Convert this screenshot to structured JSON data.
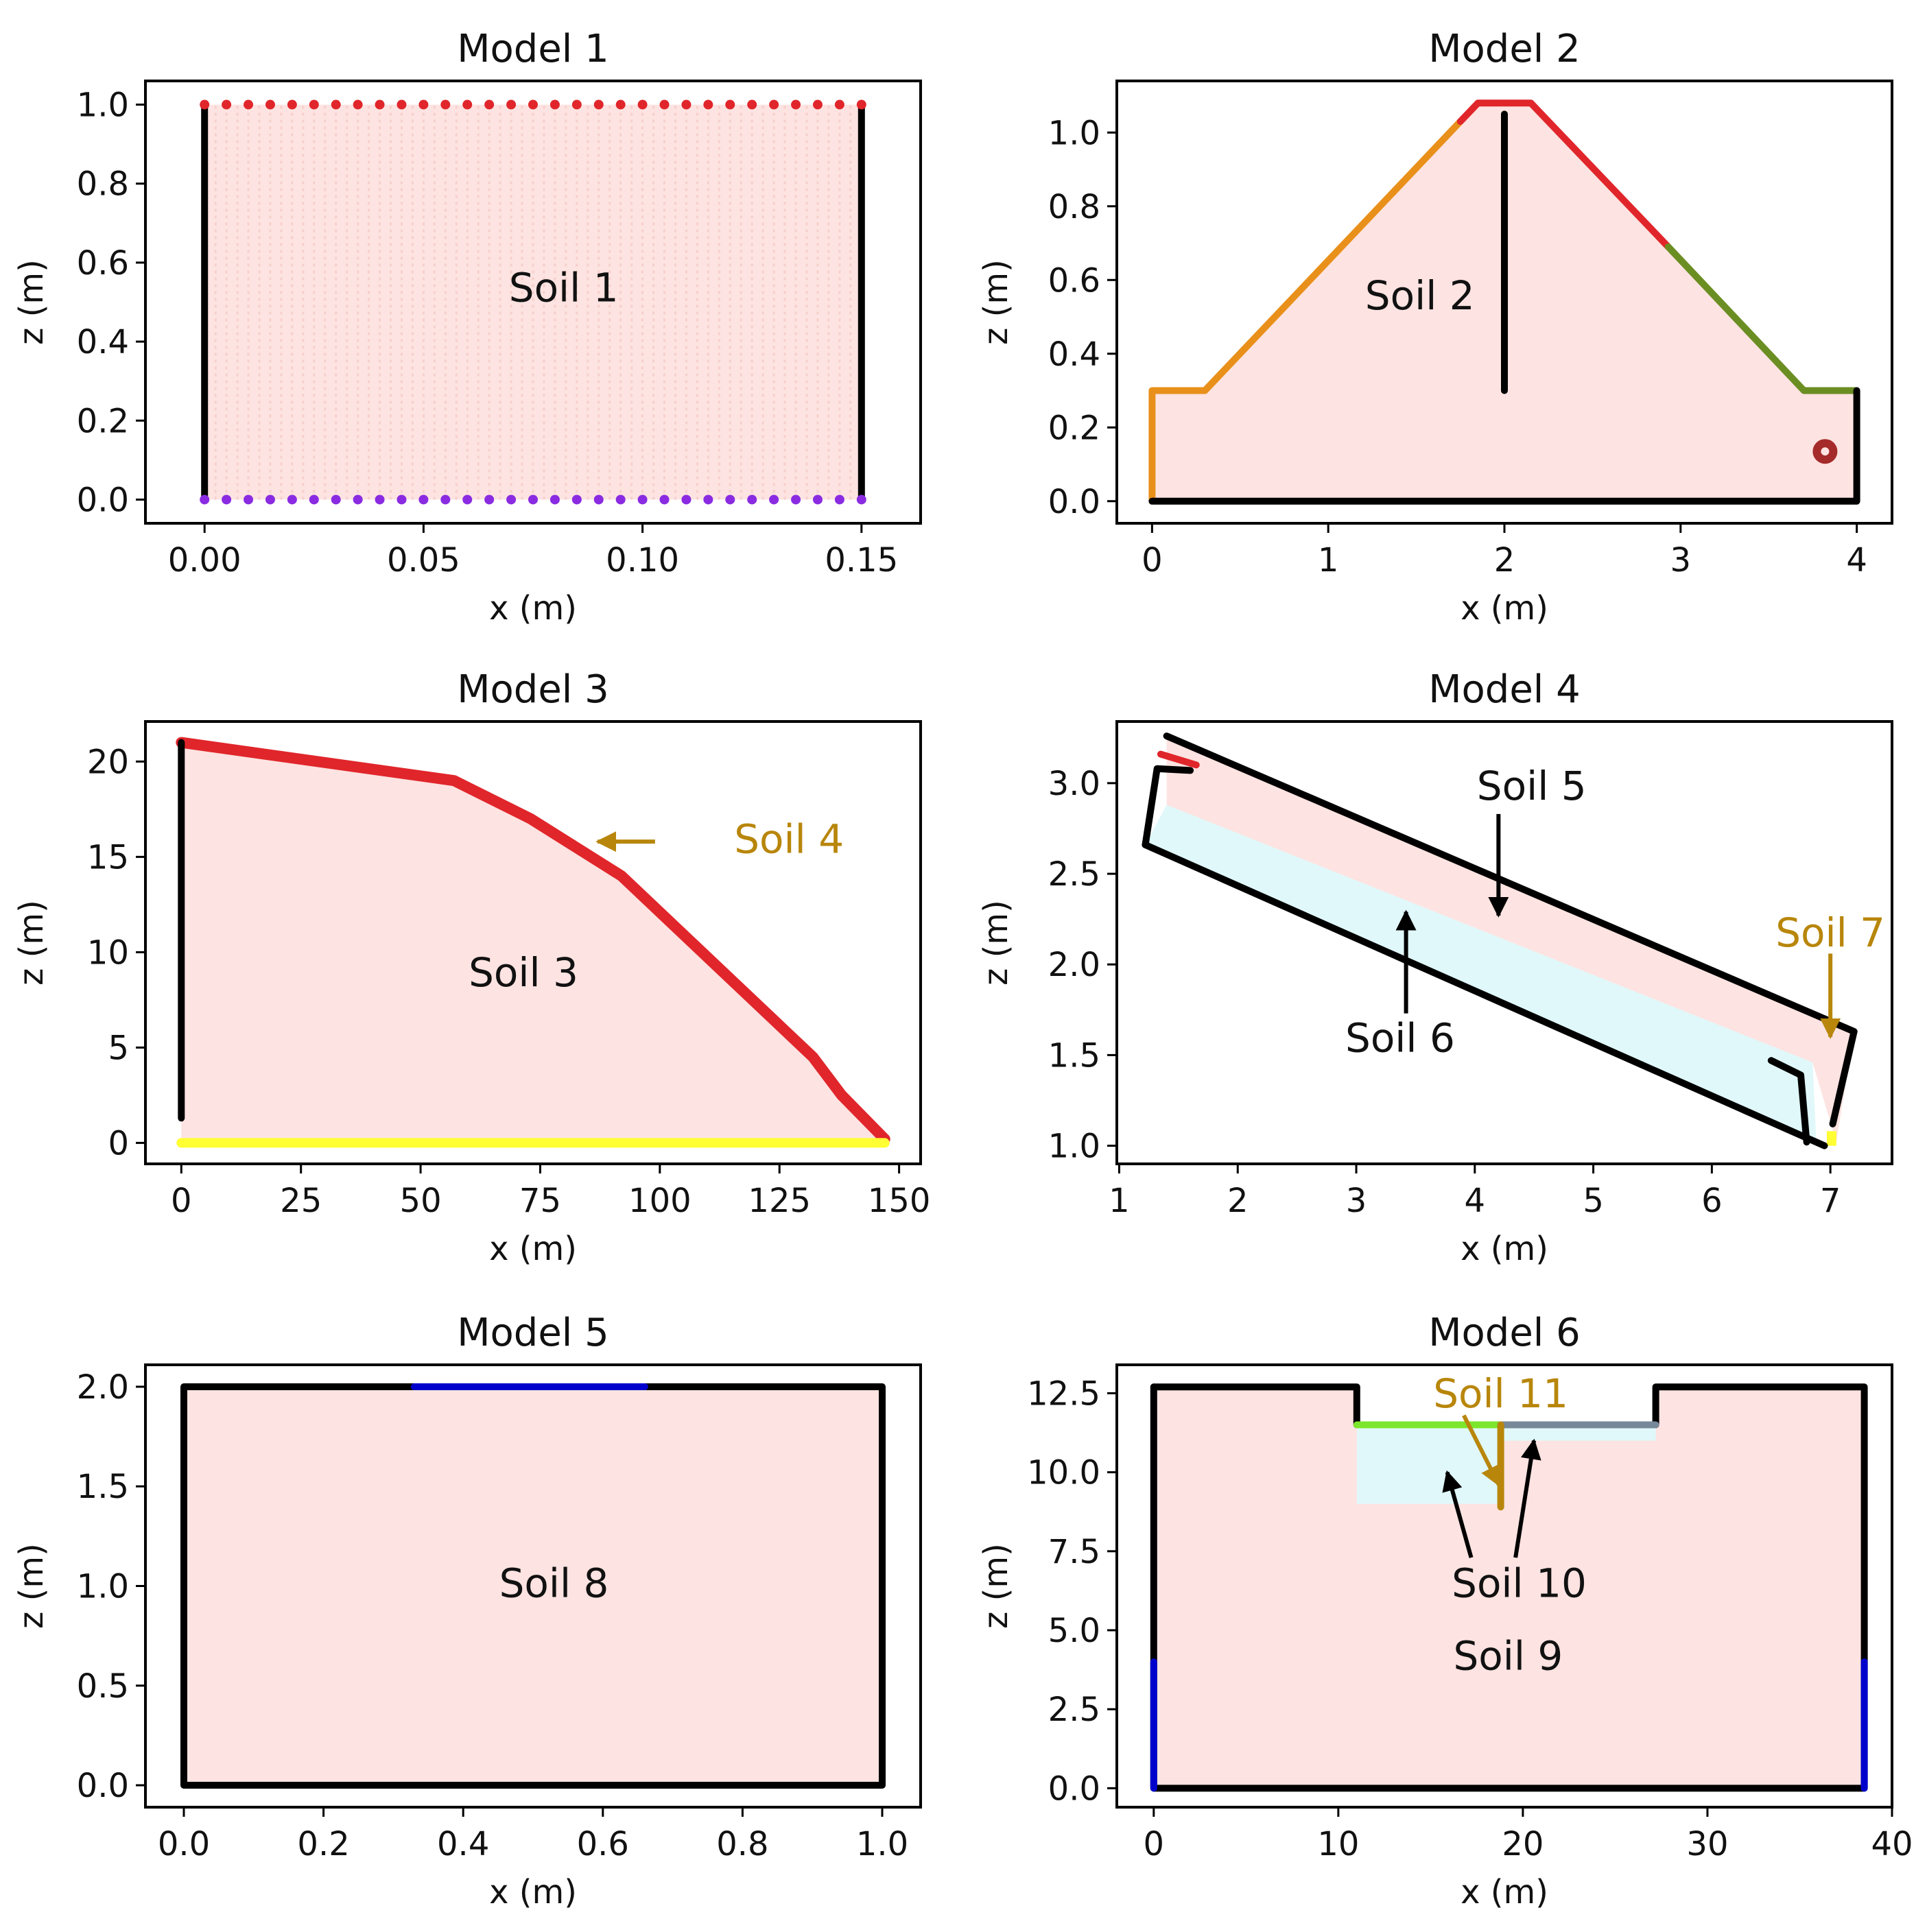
{
  "chart_data": [
    {
      "type": "scatter",
      "title": "Model 1",
      "xlabel": "x (m)",
      "ylabel": "z (m)",
      "xlim": [
        -0.0135,
        0.1635
      ],
      "ylim": [
        -0.06,
        1.06
      ],
      "xticks": [
        0.0,
        0.05,
        0.1,
        0.15
      ],
      "xtick_labels": [
        "0.00",
        "0.05",
        "0.10",
        "0.15"
      ],
      "yticks": [
        0.0,
        0.2,
        0.4,
        0.6,
        0.8,
        1.0
      ],
      "ytick_labels": [
        "0.0",
        "0.2",
        "0.4",
        "0.6",
        "0.8",
        "1.0"
      ],
      "region_fill": "#f8d9d7",
      "regions": [
        {
          "name": "soil-1",
          "color": "#fde3e1",
          "points": [
            [
              0,
              0
            ],
            [
              0.15,
              0
            ],
            [
              0.15,
              1
            ],
            [
              0,
              1
            ]
          ]
        }
      ],
      "boundaries": [
        {
          "name": "left-wall",
          "color": "#000000",
          "points": [
            [
              0,
              0
            ],
            [
              0,
              1
            ]
          ]
        },
        {
          "name": "right-wall",
          "color": "#000000",
          "points": [
            [
              0.15,
              0
            ],
            [
              0.15,
              1
            ]
          ]
        }
      ],
      "dot_rows": [
        {
          "name": "top-particles",
          "color": "#e0262b",
          "z": 1.0,
          "x_start": 0,
          "x_end": 0.15,
          "count": 31
        },
        {
          "name": "bottom-particles",
          "color": "#8a2be2",
          "z": 0.0,
          "x_start": 0,
          "x_end": 0.15,
          "count": 31
        }
      ],
      "labels": [
        {
          "text": "Soil 1",
          "x": 0.082,
          "z": 0.53,
          "color": "#111111"
        }
      ]
    },
    {
      "type": "scatter",
      "title": "Model 2",
      "xlabel": "x (m)",
      "ylabel": "z (m)",
      "xlim": [
        -0.2,
        4.2
      ],
      "ylim": [
        -0.06,
        1.14
      ],
      "xticks": [
        0,
        1,
        2,
        3,
        4
      ],
      "xtick_labels": [
        "0",
        "1",
        "2",
        "3",
        "4"
      ],
      "yticks": [
        0.0,
        0.2,
        0.4,
        0.6,
        0.8,
        1.0
      ],
      "ytick_labels": [
        "0.0",
        "0.2",
        "0.4",
        "0.6",
        "0.8",
        "1.0"
      ],
      "regions": [
        {
          "name": "soil-2",
          "color": "#fde3e1",
          "points": [
            [
              0,
              0
            ],
            [
              4,
              0
            ],
            [
              4,
              0.3
            ],
            [
              3.7,
              0.3
            ],
            [
              2.15,
              1.08
            ],
            [
              1.85,
              1.08
            ],
            [
              0.3,
              0.3
            ],
            [
              0,
              0.3
            ]
          ]
        }
      ],
      "boundaries": [
        {
          "name": "left-slope-boundary",
          "color": "#e8901a",
          "points": [
            [
              0,
              0
            ],
            [
              0,
              0.3
            ],
            [
              0.3,
              0.3
            ],
            [
              1.75,
              1.03
            ]
          ]
        },
        {
          "name": "crest-boundary",
          "color": "#e0262b",
          "points": [
            [
              1.75,
              1.03
            ],
            [
              1.85,
              1.08
            ],
            [
              2.15,
              1.08
            ],
            [
              2.93,
              0.69
            ]
          ]
        },
        {
          "name": "right-slope-boundary",
          "color": "#6b8e23",
          "points": [
            [
              2.93,
              0.69
            ],
            [
              3.7,
              0.3
            ],
            [
              4,
              0.3
            ]
          ]
        },
        {
          "name": "base-boundary",
          "color": "#000000",
          "points": [
            [
              0,
              0
            ],
            [
              4,
              0
            ],
            [
              4,
              0.3
            ]
          ]
        },
        {
          "name": "core-wall",
          "color": "#000000",
          "points": [
            [
              2,
              0.3
            ],
            [
              2,
              1.05
            ]
          ]
        }
      ],
      "markers": [
        {
          "name": "red-marker",
          "x": 3.82,
          "z": 0.135,
          "color": "#a52a2a"
        }
      ],
      "labels": [
        {
          "text": "Soil 2",
          "x": 1.52,
          "z": 0.55,
          "color": "#111111"
        }
      ]
    },
    {
      "type": "scatter",
      "title": "Model 3",
      "xlabel": "x (m)",
      "ylabel": "z (m)",
      "xlim": [
        -7.5,
        154.5
      ],
      "ylim": [
        -1.1,
        22.1
      ],
      "xticks": [
        0,
        25,
        50,
        75,
        100,
        125,
        150
      ],
      "xtick_labels": [
        "0",
        "25",
        "50",
        "75",
        "100",
        "125",
        "150"
      ],
      "yticks": [
        0,
        5,
        10,
        15,
        20
      ],
      "ytick_labels": [
        "0",
        "5",
        "10",
        "15",
        "20"
      ],
      "regions": [
        {
          "name": "soil-3",
          "color": "#fde3e1",
          "points": [
            [
              0,
              0
            ],
            [
              147,
              0
            ],
            [
              138,
              2.5
            ],
            [
              132,
              4.5
            ],
            [
              92,
              14
            ],
            [
              73,
              17
            ],
            [
              57,
              19
            ],
            [
              0,
              21
            ]
          ]
        }
      ],
      "boundaries": [
        {
          "name": "surface-boundary",
          "color": "#e0262b",
          "points": [
            [
              0,
              21
            ],
            [
              57,
              19
            ],
            [
              73,
              17
            ],
            [
              92,
              14
            ],
            [
              132,
              4.5
            ],
            [
              138,
              2.5
            ],
            [
              147,
              0.2
            ]
          ]
        },
        {
          "name": "base-boundary",
          "color": "#ffff33",
          "points": [
            [
              0,
              0
            ],
            [
              147,
              0
            ]
          ]
        },
        {
          "name": "left-boundary",
          "color": "#000000",
          "points": [
            [
              0,
              1.3
            ],
            [
              0,
              21
            ]
          ]
        }
      ],
      "labels": [
        {
          "text": "Soil 3",
          "x": 71.5,
          "z": 8.8,
          "color": "#111111"
        },
        {
          "text": "Soil 4",
          "x": 127,
          "z": 15.8,
          "color": "#b8860b"
        }
      ],
      "arrows": [
        {
          "name": "soil-4-arrow",
          "from": [
            99,
            15.8
          ],
          "to": [
            87,
            15.8
          ],
          "color": "#b8860b"
        }
      ]
    },
    {
      "type": "scatter",
      "title": "Model 4",
      "xlabel": "x (m)",
      "ylabel": "z (m)",
      "xlim": [
        0.98,
        7.52
      ],
      "ylim": [
        0.9,
        3.34
      ],
      "xticks": [
        1,
        2,
        3,
        4,
        5,
        6,
        7
      ],
      "xtick_labels": [
        "1",
        "2",
        "3",
        "4",
        "5",
        "6",
        "7"
      ],
      "yticks": [
        1.0,
        1.5,
        2.0,
        2.5,
        3.0
      ],
      "ytick_labels": [
        "1.0",
        "1.5",
        "2.0",
        "2.5",
        "3.0"
      ],
      "regions": [
        {
          "name": "soil-5",
          "color": "#fde3e1",
          "points": [
            [
              1.4,
              3.26
            ],
            [
              7.2,
              1.63
            ],
            [
              7.05,
              1.02
            ],
            [
              6.85,
              1.46
            ],
            [
              1.4,
              2.88
            ]
          ]
        },
        {
          "name": "soil-6",
          "color": "#e0f8fa",
          "points": [
            [
              1.22,
              2.66
            ],
            [
              1.4,
              2.88
            ],
            [
              6.85,
              1.46
            ],
            [
              6.88,
              1.03
            ],
            [
              6.95,
              1.0
            ]
          ]
        },
        {
          "name": "soil-7",
          "color": "#ffff33",
          "points": [
            [
              6.97,
              1.0
            ],
            [
              7.05,
              1.0
            ],
            [
              7.05,
              1.08
            ],
            [
              6.97,
              1.08
            ]
          ]
        }
      ],
      "boundaries": [
        {
          "name": "upper-boundary",
          "color": "#000000",
          "points": [
            [
              1.4,
              3.26
            ],
            [
              7.2,
              1.63
            ],
            [
              7.02,
              1.12
            ]
          ]
        },
        {
          "name": "lower-boundary",
          "color": "#000000",
          "points": [
            [
              1.22,
              2.66
            ],
            [
              6.95,
              1.0
            ]
          ]
        },
        {
          "name": "left-boundary",
          "color": "#000000",
          "points": [
            [
              1.22,
              2.66
            ],
            [
              1.32,
              3.08
            ],
            [
              1.6,
              3.07
            ]
          ]
        },
        {
          "name": "top-left-red",
          "color": "#e0262b",
          "points": [
            [
              1.35,
              3.16
            ],
            [
              1.65,
              3.1
            ]
          ]
        },
        {
          "name": "right-step",
          "color": "#000000",
          "points": [
            [
              6.5,
              1.47
            ],
            [
              6.75,
              1.39
            ],
            [
              6.8,
              1.02
            ]
          ]
        }
      ],
      "labels": [
        {
          "text": "Soil 5",
          "x": 4.48,
          "z": 2.97,
          "color": "#111111"
        },
        {
          "text": "Soil 6",
          "x": 3.37,
          "z": 1.58,
          "color": "#111111"
        },
        {
          "text": "Soil 7",
          "x": 7.0,
          "z": 2.16,
          "color": "#b8860b"
        }
      ],
      "arrows": [
        {
          "name": "soil-5-arrow",
          "from": [
            4.2,
            2.83
          ],
          "to": [
            4.2,
            2.27
          ],
          "color": "#000000"
        },
        {
          "name": "soil-6-arrow",
          "from": [
            3.42,
            1.73
          ],
          "to": [
            3.42,
            2.29
          ],
          "color": "#000000"
        },
        {
          "name": "soil-7-arrow",
          "from": [
            7.0,
            2.06
          ],
          "to": [
            7.0,
            1.6
          ],
          "color": "#b8860b"
        }
      ]
    },
    {
      "type": "scatter",
      "title": "Model 5",
      "xlabel": "x (m)",
      "ylabel": "z (m)",
      "xlim": [
        -0.055,
        1.055
      ],
      "ylim": [
        -0.11,
        2.11
      ],
      "xticks": [
        0.0,
        0.2,
        0.4,
        0.6,
        0.8,
        1.0
      ],
      "xtick_labels": [
        "0.0",
        "0.2",
        "0.4",
        "0.6",
        "0.8",
        "1.0"
      ],
      "yticks": [
        0.0,
        0.5,
        1.0,
        1.5,
        2.0
      ],
      "ytick_labels": [
        "0.0",
        "0.5",
        "1.0",
        "1.5",
        "2.0"
      ],
      "regions": [
        {
          "name": "soil-8",
          "color": "#fde3e1",
          "points": [
            [
              0,
              0
            ],
            [
              1,
              0
            ],
            [
              1,
              2
            ],
            [
              0,
              2
            ]
          ]
        }
      ],
      "boundaries": [
        {
          "name": "box-boundary",
          "color": "#000000",
          "points": [
            [
              0,
              2
            ],
            [
              0,
              0
            ],
            [
              1,
              0
            ],
            [
              1,
              2
            ],
            [
              0,
              2
            ]
          ]
        },
        {
          "name": "top-load-strip",
          "color": "#0000cd",
          "points": [
            [
              0.33,
              2
            ],
            [
              0.66,
              2
            ]
          ]
        }
      ],
      "labels": [
        {
          "text": "Soil 8",
          "x": 0.53,
          "z": 1.0,
          "color": "#111111"
        }
      ]
    },
    {
      "type": "scatter",
      "title": "Model 6",
      "xlabel": "x (m)",
      "ylabel": "z (m)",
      "xlim": [
        -2.0,
        40.0
      ],
      "ylim": [
        -0.6,
        13.4
      ],
      "xticks": [
        0,
        10,
        20,
        30,
        40
      ],
      "xtick_labels": [
        "0",
        "10",
        "20",
        "30",
        "40"
      ],
      "yticks": [
        0.0,
        2.5,
        5.0,
        7.5,
        10.0,
        12.5
      ],
      "ytick_labels": [
        "0.0",
        "2.5",
        "5.0",
        "7.5",
        "10.0",
        "12.5"
      ],
      "regions": [
        {
          "name": "soil-9",
          "color": "#fde3e1",
          "points": [
            [
              0,
              0
            ],
            [
              38.5,
              0
            ],
            [
              38.5,
              12.7
            ],
            [
              27.2,
              12.7
            ],
            [
              27.2,
              11.5
            ],
            [
              11,
              11.5
            ],
            [
              11,
              12.7
            ],
            [
              0,
              12.7
            ]
          ]
        },
        {
          "name": "soil-10-left",
          "color": "#e0f8fa",
          "points": [
            [
              11,
              9.0
            ],
            [
              18.7,
              9.0
            ],
            [
              18.7,
              11.5
            ],
            [
              11,
              11.5
            ]
          ]
        },
        {
          "name": "soil-10-right",
          "color": "#e0f8fa",
          "points": [
            [
              18.9,
              11.0
            ],
            [
              27.2,
              11.0
            ],
            [
              27.2,
              11.5
            ],
            [
              18.9,
              11.5
            ]
          ]
        }
      ],
      "boundaries": [
        {
          "name": "outer-boundary",
          "color": "#000000",
          "points": [
            [
              0,
              12.7
            ],
            [
              0,
              0
            ],
            [
              38.5,
              0
            ],
            [
              38.5,
              12.7
            ],
            [
              27.2,
              12.7
            ],
            [
              27.2,
              11.5
            ]
          ]
        },
        {
          "name": "left-crest",
          "color": "#000000",
          "points": [
            [
              0,
              12.7
            ],
            [
              11,
              12.7
            ],
            [
              11,
              11.5
            ]
          ]
        },
        {
          "name": "green-surface",
          "color": "#7ce62c",
          "points": [
            [
              11,
              11.5
            ],
            [
              18.8,
              11.5
            ]
          ]
        },
        {
          "name": "grey-surface",
          "color": "#778899",
          "points": [
            [
              18.8,
              11.5
            ],
            [
              27.2,
              11.5
            ]
          ]
        },
        {
          "name": "left-blue-wall",
          "color": "#0000cd",
          "points": [
            [
              0,
              0
            ],
            [
              0,
              4.0
            ]
          ]
        },
        {
          "name": "right-blue-wall",
          "color": "#0000cd",
          "points": [
            [
              38.5,
              0
            ],
            [
              38.5,
              4.0
            ]
          ]
        },
        {
          "name": "soil-11-strip",
          "color": "#b8860b",
          "points": [
            [
              18.8,
              8.9
            ],
            [
              18.8,
              11.5
            ]
          ]
        }
      ],
      "labels": [
        {
          "text": "Soil 11",
          "x": 18.8,
          "z": 12.4,
          "color": "#b8860b"
        },
        {
          "text": "Soil 10",
          "x": 19.8,
          "z": 6.4,
          "color": "#111111"
        },
        {
          "text": "Soil 9",
          "x": 19.2,
          "z": 4.1,
          "color": "#111111"
        }
      ],
      "arrows": [
        {
          "name": "soil-11-arrow",
          "from": [
            16.8,
            11.8
          ],
          "to": [
            18.7,
            9.6
          ],
          "color": "#b8860b"
        },
        {
          "name": "soil-10-left-arrow",
          "from": [
            17.2,
            7.3
          ],
          "to": [
            15.9,
            10.0
          ],
          "color": "#000000"
        },
        {
          "name": "soil-10-right-arrow",
          "from": [
            19.6,
            7.3
          ],
          "to": [
            20.6,
            11.0
          ],
          "color": "#000000"
        }
      ]
    }
  ]
}
